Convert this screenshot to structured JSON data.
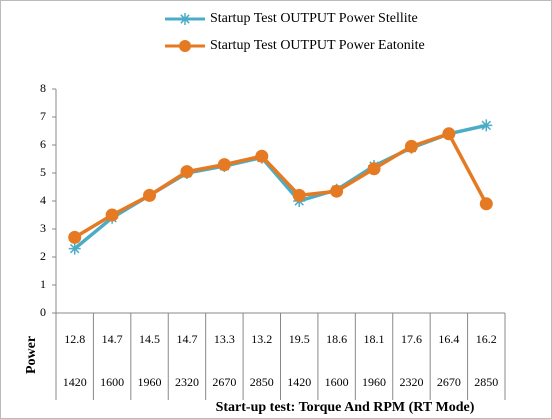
{
  "chart_data": {
    "type": "line",
    "x_label": "Start-up test: Torque And RPM (RT Mode)",
    "y_label": "Power",
    "categories": [
      "12.8",
      "14.7",
      "14.5",
      "14.7",
      "13.3",
      "13.2",
      "19.5",
      "18.6",
      "18.1",
      "17.6",
      "16.4",
      "16.2"
    ],
    "sub_categories": [
      "1420",
      "1600",
      "1960",
      "2320",
      "2670",
      "2850",
      "1420",
      "1600",
      "1960",
      "2320",
      "2670",
      "2850"
    ],
    "series": [
      {
        "name": "Startup Test OUTPUT Power Stellite",
        "color": "#4bacc6",
        "marker": "star",
        "values": [
          2.3,
          3.4,
          4.2,
          5.0,
          5.25,
          5.55,
          4.0,
          4.4,
          5.25,
          5.9,
          6.4,
          6.7
        ]
      },
      {
        "name": "Startup Test OUTPUT Power  Eatonite",
        "color": "#e67a22",
        "marker": "circle",
        "values": [
          2.7,
          3.5,
          4.2,
          5.05,
          5.3,
          5.6,
          4.2,
          4.35,
          5.15,
          5.95,
          6.4,
          3.9
        ]
      }
    ],
    "ylim": [
      0,
      8
    ],
    "yticks": [
      0,
      1,
      2,
      3,
      4,
      5,
      6,
      7,
      8
    ],
    "grid": false,
    "legend": "top"
  }
}
